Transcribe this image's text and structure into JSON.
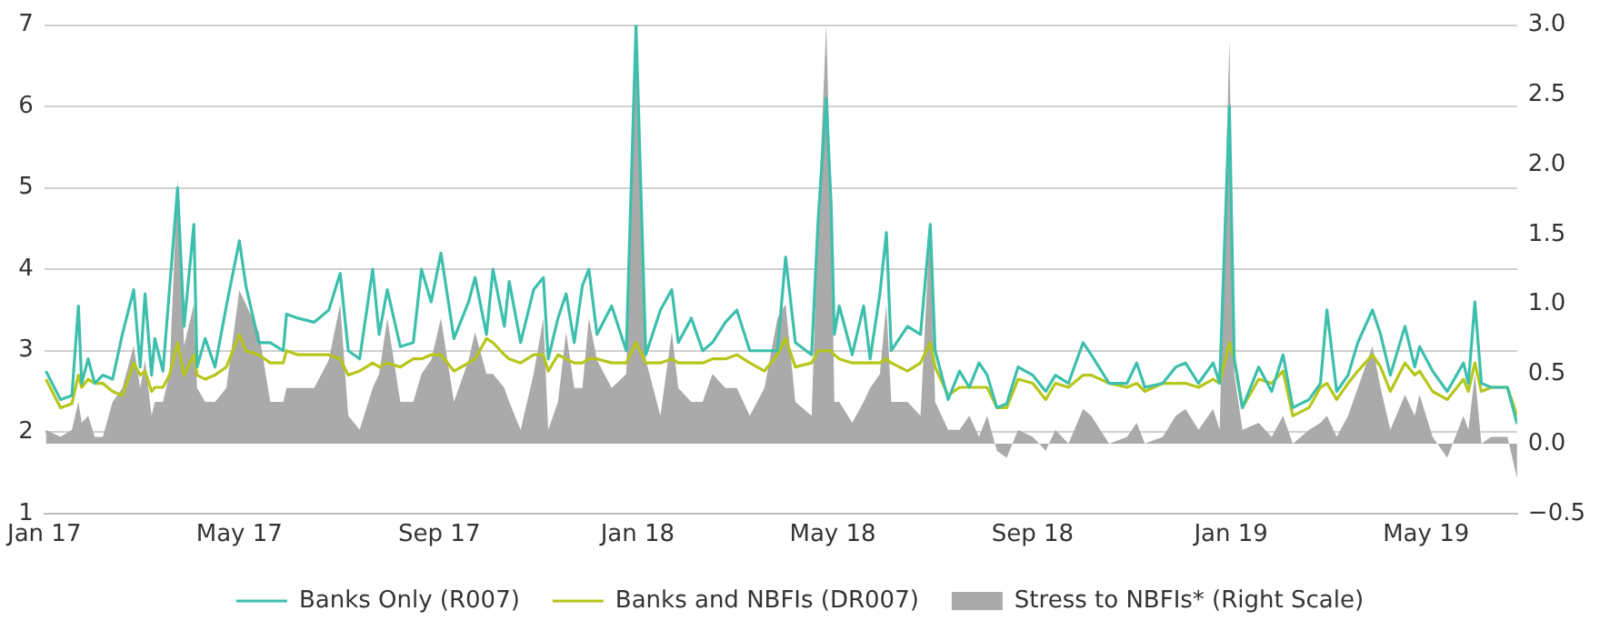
{
  "chart_data": {
    "type": "line",
    "legend": "bottom",
    "grid": "y",
    "marker": "none",
    "xlim": [
      "2017-01-01",
      "2019-06-26"
    ],
    "xticks": [
      {
        "value": "2017-01",
        "label": "Jan 17"
      },
      {
        "value": "2017-05",
        "label": "May 17"
      },
      {
        "value": "2017-09",
        "label": "Sep 17"
      },
      {
        "value": "2018-01",
        "label": "Jan 18"
      },
      {
        "value": "2018-05",
        "label": "May 18"
      },
      {
        "value": "2018-09",
        "label": "Sep 18"
      },
      {
        "value": "2019-01",
        "label": "Jan 19"
      },
      {
        "value": "2019-05",
        "label": "May 19"
      }
    ],
    "ylim": [
      1,
      7
    ],
    "yticks": [
      1,
      2,
      3,
      4,
      5,
      6,
      7
    ],
    "y2lim": [
      -0.5,
      3
    ],
    "y2ticks": [
      {
        "value": -0.5,
        "label": "−0.5"
      },
      {
        "value": 0,
        "label": "0.0"
      },
      {
        "value": 0.5,
        "label": "0.5"
      },
      {
        "value": 1,
        "label": "1.0"
      },
      {
        "value": 1.5,
        "label": "1.5"
      },
      {
        "value": 2,
        "label": "2.0"
      },
      {
        "value": 2.5,
        "label": "2.5"
      },
      {
        "value": 3,
        "label": "3.0"
      }
    ],
    "x": [
      "2017-01-02",
      "2017-01-11",
      "2017-01-18",
      "2017-01-22",
      "2017-01-24",
      "2017-01-28",
      "2017-02-01",
      "2017-02-06",
      "2017-02-12",
      "2017-02-18",
      "2017-02-25",
      "2017-03-01",
      "2017-03-04",
      "2017-03-08",
      "2017-03-10",
      "2017-03-15",
      "2017-03-19",
      "2017-03-24",
      "2017-03-28",
      "2017-04-03",
      "2017-04-05",
      "2017-04-10",
      "2017-04-16",
      "2017-04-23",
      "2017-05-01",
      "2017-05-05",
      "2017-05-13",
      "2017-05-20",
      "2017-05-28",
      "2017-05-30",
      "2017-06-06",
      "2017-06-16",
      "2017-06-25",
      "2017-07-02",
      "2017-07-07",
      "2017-07-14",
      "2017-07-22",
      "2017-07-26",
      "2017-07-31",
      "2017-08-08",
      "2017-08-16",
      "2017-08-21",
      "2017-08-27",
      "2017-09-02",
      "2017-09-10",
      "2017-09-19",
      "2017-09-23",
      "2017-09-30",
      "2017-10-04",
      "2017-10-11",
      "2017-10-14",
      "2017-10-21",
      "2017-10-29",
      "2017-11-04",
      "2017-11-07",
      "2017-11-13",
      "2017-11-18",
      "2017-11-23",
      "2017-11-28",
      "2017-12-02",
      "2017-12-07",
      "2017-12-16",
      "2017-12-25",
      "2017-12-31",
      "2018-01-06",
      "2018-01-15",
      "2018-01-22",
      "2018-01-26",
      "2018-02-03",
      "2018-02-10",
      "2018-02-16",
      "2018-02-24",
      "2018-03-03",
      "2018-03-11",
      "2018-03-20",
      "2018-03-28",
      "2018-04-02",
      "2018-04-08",
      "2018-04-18",
      "2018-04-22",
      "2018-04-27",
      "2018-04-30",
      "2018-05-02",
      "2018-05-05",
      "2018-05-13",
      "2018-05-20",
      "2018-05-24",
      "2018-05-30",
      "2018-06-03",
      "2018-06-06",
      "2018-06-16",
      "2018-06-24",
      "2018-06-30",
      "2018-07-03",
      "2018-07-11",
      "2018-07-18",
      "2018-07-24",
      "2018-07-30",
      "2018-08-04",
      "2018-08-10",
      "2018-08-16",
      "2018-08-23",
      "2018-09-01",
      "2018-09-09",
      "2018-09-15",
      "2018-09-23",
      "2018-10-02",
      "2018-10-07",
      "2018-10-18",
      "2018-10-29",
      "2018-11-04",
      "2018-11-09",
      "2018-11-20",
      "2018-11-28",
      "2018-12-04",
      "2018-12-12",
      "2018-12-21",
      "2018-12-25",
      "2018-12-31",
      "2019-01-03",
      "2019-01-08",
      "2019-01-18",
      "2019-01-26",
      "2019-02-02",
      "2019-02-08",
      "2019-02-18",
      "2019-02-25",
      "2019-03-01",
      "2019-03-07",
      "2019-03-14",
      "2019-03-20",
      "2019-03-29",
      "2019-04-03",
      "2019-04-09",
      "2019-04-18",
      "2019-04-24",
      "2019-04-27",
      "2019-05-05",
      "2019-05-14",
      "2019-05-24",
      "2019-05-27",
      "2019-05-31",
      "2019-06-04",
      "2019-06-10",
      "2019-06-20",
      "2019-06-26"
    ],
    "series": [
      {
        "name": "Stress to NBFIs* (Right Scale)",
        "type": "area",
        "axis": "y2",
        "color": "#aaaaaa",
        "values": [
          0.1,
          0.05,
          0.1,
          0.3,
          0.15,
          0.2,
          0.05,
          0.05,
          0.3,
          0.4,
          0.7,
          0.4,
          0.6,
          0.2,
          0.3,
          0.3,
          0.5,
          1.9,
          0.7,
          1.0,
          0.4,
          0.3,
          0.3,
          0.4,
          1.1,
          1.0,
          0.8,
          0.3,
          0.3,
          0.4,
          0.4,
          0.4,
          0.6,
          1.0,
          0.2,
          0.1,
          0.4,
          0.5,
          0.9,
          0.3,
          0.3,
          0.5,
          0.6,
          0.9,
          0.3,
          0.6,
          0.8,
          0.5,
          0.5,
          0.4,
          0.3,
          0.1,
          0.5,
          0.9,
          0.1,
          0.3,
          0.8,
          0.4,
          0.4,
          0.9,
          0.6,
          0.4,
          0.5,
          2.95,
          0.6,
          0.2,
          0.8,
          0.4,
          0.3,
          0.3,
          0.5,
          0.4,
          0.4,
          0.2,
          0.4,
          0.9,
          1.0,
          0.3,
          0.2,
          1.6,
          3.0,
          1.7,
          0.3,
          0.3,
          0.15,
          0.3,
          0.4,
          0.5,
          1.0,
          0.3,
          0.3,
          0.2,
          1.6,
          0.3,
          0.1,
          0.1,
          0.2,
          0.05,
          0.2,
          -0.05,
          -0.1,
          0.1,
          0.05,
          -0.05,
          0.1,
          0.0,
          0.25,
          0.2,
          0.0,
          0.05,
          0.15,
          0.0,
          0.05,
          0.2,
          0.25,
          0.1,
          0.25,
          0.1,
          2.9,
          0.5,
          0.1,
          0.15,
          0.05,
          0.2,
          0.0,
          0.1,
          0.15,
          0.2,
          0.05,
          0.2,
          0.4,
          0.7,
          0.4,
          0.1,
          0.35,
          0.2,
          0.35,
          0.05,
          -0.1,
          0.2,
          0.1,
          0.5,
          0.0,
          0.05,
          0.05,
          -0.25
        ]
      },
      {
        "name": "Banks Only (R007)",
        "color": "#3dbfad",
        "values": [
          2.75,
          2.4,
          2.45,
          3.55,
          2.6,
          2.9,
          2.6,
          2.7,
          2.65,
          3.2,
          3.75,
          2.8,
          3.7,
          2.7,
          3.15,
          2.75,
          3.75,
          5.0,
          3.3,
          4.55,
          2.8,
          3.15,
          2.8,
          3.55,
          4.35,
          3.8,
          3.1,
          3.1,
          3.0,
          3.45,
          3.4,
          3.35,
          3.5,
          3.95,
          3.0,
          2.9,
          4.0,
          3.2,
          3.75,
          3.05,
          3.1,
          4.0,
          3.6,
          4.2,
          3.15,
          3.6,
          3.9,
          3.2,
          4.0,
          3.3,
          3.85,
          3.1,
          3.75,
          3.9,
          2.9,
          3.4,
          3.7,
          3.1,
          3.8,
          4.0,
          3.2,
          3.55,
          3.0,
          7.0,
          2.95,
          3.5,
          3.75,
          3.1,
          3.4,
          3.0,
          3.1,
          3.35,
          3.5,
          3.0,
          3.0,
          3.0,
          4.15,
          3.1,
          2.95,
          4.6,
          6.1,
          4.8,
          3.2,
          3.55,
          2.95,
          3.55,
          2.9,
          3.7,
          4.45,
          3.0,
          3.3,
          3.2,
          4.55,
          3.0,
          2.4,
          2.75,
          2.55,
          2.85,
          2.7,
          2.3,
          2.35,
          2.8,
          2.7,
          2.5,
          2.7,
          2.6,
          3.1,
          2.95,
          2.6,
          2.6,
          2.85,
          2.55,
          2.6,
          2.8,
          2.85,
          2.6,
          2.85,
          2.6,
          6.0,
          2.9,
          2.3,
          2.8,
          2.5,
          2.95,
          2.3,
          2.4,
          2.6,
          3.5,
          2.5,
          2.7,
          3.1,
          3.5,
          3.2,
          2.7,
          3.3,
          2.8,
          3.05,
          2.75,
          2.5,
          2.85,
          2.6,
          3.6,
          2.6,
          2.55,
          2.55,
          2.1
        ]
      },
      {
        "name": "Banks and NBFIs (DR007)",
        "color": "#b5c71a",
        "values": [
          2.65,
          2.3,
          2.35,
          2.7,
          2.55,
          2.65,
          2.6,
          2.6,
          2.5,
          2.45,
          2.85,
          2.7,
          2.75,
          2.5,
          2.55,
          2.55,
          2.7,
          3.1,
          2.7,
          2.95,
          2.7,
          2.65,
          2.7,
          2.8,
          3.2,
          3.0,
          2.95,
          2.85,
          2.85,
          3.0,
          2.95,
          2.95,
          2.95,
          2.9,
          2.7,
          2.75,
          2.85,
          2.8,
          2.85,
          2.8,
          2.9,
          2.9,
          2.95,
          2.95,
          2.75,
          2.85,
          2.9,
          3.15,
          3.1,
          2.95,
          2.9,
          2.85,
          2.95,
          2.95,
          2.75,
          2.95,
          2.9,
          2.85,
          2.85,
          2.9,
          2.9,
          2.85,
          2.85,
          3.1,
          2.85,
          2.85,
          2.9,
          2.85,
          2.85,
          2.85,
          2.9,
          2.9,
          2.95,
          2.85,
          2.75,
          2.95,
          3.15,
          2.8,
          2.85,
          3.0,
          3.0,
          3.0,
          2.95,
          2.9,
          2.85,
          2.85,
          2.85,
          2.85,
          2.9,
          2.85,
          2.75,
          2.85,
          3.1,
          2.8,
          2.45,
          2.55,
          2.55,
          2.55,
          2.55,
          2.3,
          2.3,
          2.65,
          2.6,
          2.4,
          2.6,
          2.55,
          2.7,
          2.7,
          2.6,
          2.55,
          2.6,
          2.5,
          2.6,
          2.6,
          2.6,
          2.55,
          2.65,
          2.6,
          3.1,
          2.9,
          2.3,
          2.65,
          2.6,
          2.75,
          2.2,
          2.3,
          2.55,
          2.6,
          2.4,
          2.6,
          2.75,
          2.95,
          2.8,
          2.5,
          2.85,
          2.7,
          2.75,
          2.5,
          2.4,
          2.65,
          2.5,
          2.85,
          2.5,
          2.55,
          2.55,
          2.2
        ]
      }
    ]
  }
}
